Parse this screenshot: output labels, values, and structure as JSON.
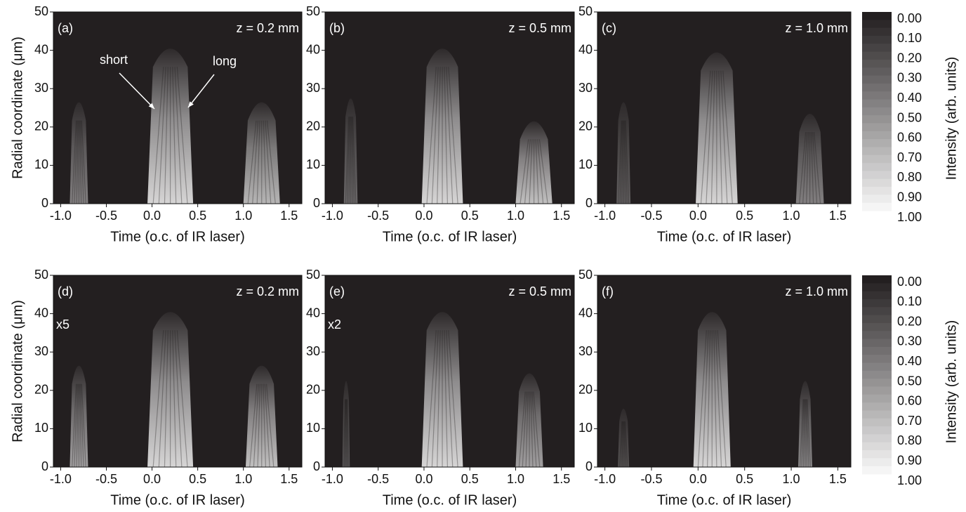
{
  "chart_data": [
    {
      "type": "contour",
      "panel": "(a)",
      "annotation": "z = 0.2 mm",
      "xlabel": "Time (o.c. of IR laser)",
      "ylabel": "Radial coordinate (μm)",
      "notes": [
        "short",
        "long"
      ],
      "xlim": [
        -1.08,
        1.64
      ],
      "ylim": [
        0,
        50
      ],
      "xticks": [
        {
          "value": -1,
          "label": "-1.0"
        },
        -0.5,
        {
          "value": 0,
          "label": "0.0"
        },
        0.5,
        {
          "value": 1,
          "label": "1.0"
        },
        1.5
      ],
      "yticks": [
        0,
        10,
        20,
        30,
        40,
        50
      ],
      "lobes": [
        {
          "x": -0.8,
          "width": 0.2,
          "top": 29,
          "intensity": 0.45
        },
        {
          "x": 0.2,
          "width": 0.5,
          "top": 43,
          "intensity": 0.85
        },
        {
          "x": 1.2,
          "width": 0.4,
          "top": 29,
          "intensity": 0.7
        }
      ]
    },
    {
      "type": "contour",
      "panel": "(b)",
      "annotation": "z = 0.5 mm",
      "xlabel": "Time (o.c. of IR laser)",
      "xlim": [
        -1.08,
        1.64
      ],
      "ylim": [
        0,
        50
      ],
      "xticks": [
        {
          "value": -1,
          "label": "-1.0"
        },
        -0.5,
        {
          "value": 0,
          "label": "0.0"
        },
        0.5,
        {
          "value": 1,
          "label": "1.0"
        },
        1.5
      ],
      "yticks": [
        0,
        10,
        20,
        30,
        40,
        50
      ],
      "lobes": [
        {
          "x": -0.8,
          "width": 0.15,
          "top": 30,
          "intensity": 0.35
        },
        {
          "x": 0.2,
          "width": 0.45,
          "top": 43,
          "intensity": 0.85
        },
        {
          "x": 1.2,
          "width": 0.4,
          "top": 24,
          "intensity": 0.75
        }
      ]
    },
    {
      "type": "contour",
      "panel": "(c)",
      "annotation": "z = 1.0 mm",
      "xlabel": "Time (o.c. of IR laser)",
      "xlim": [
        -1.08,
        1.64
      ],
      "ylim": [
        0,
        50
      ],
      "xticks": [
        {
          "value": -1,
          "label": "-1.0"
        },
        -0.5,
        {
          "value": 0,
          "label": "0.0"
        },
        0.5,
        {
          "value": 1,
          "label": "1.0"
        },
        1.5
      ],
      "yticks": [
        0,
        10,
        20,
        30,
        40,
        50
      ],
      "lobes": [
        {
          "x": -0.8,
          "width": 0.15,
          "top": 29,
          "intensity": 0.3
        },
        {
          "x": 0.2,
          "width": 0.45,
          "top": 42,
          "intensity": 0.85
        },
        {
          "x": 1.2,
          "width": 0.3,
          "top": 26,
          "intensity": 0.45
        }
      ]
    },
    {
      "type": "contour",
      "panel": "(d)",
      "annotation": "z = 0.2 mm",
      "xlabel": "Time (o.c. of IR laser)",
      "ylabel": "Radial coordinate (μm)",
      "notes": [
        "x5"
      ],
      "xlim": [
        -1.08,
        1.64
      ],
      "ylim": [
        0,
        50
      ],
      "xticks": [
        {
          "value": -1,
          "label": "-1.0"
        },
        -0.5,
        {
          "value": 0,
          "label": "0.0"
        },
        0.5,
        {
          "value": 1,
          "label": "1.0"
        },
        1.5
      ],
      "yticks": [
        0,
        10,
        20,
        30,
        40,
        50
      ],
      "lobes": [
        {
          "x": -0.8,
          "width": 0.2,
          "top": 29,
          "intensity": 0.6
        },
        {
          "x": 0.2,
          "width": 0.5,
          "top": 43,
          "intensity": 0.85
        },
        {
          "x": 1.2,
          "width": 0.35,
          "top": 29,
          "intensity": 0.75
        }
      ]
    },
    {
      "type": "contour",
      "panel": "(e)",
      "annotation": "z = 0.5 mm",
      "xlabel": "Time (o.c. of IR laser)",
      "notes": [
        "x2"
      ],
      "xlim": [
        -1.08,
        1.64
      ],
      "ylim": [
        0,
        50
      ],
      "xticks": [
        {
          "value": -1,
          "label": "-1.0"
        },
        -0.5,
        {
          "value": 0,
          "label": "0.0"
        },
        0.5,
        {
          "value": 1,
          "label": "1.0"
        },
        1.5
      ],
      "yticks": [
        0,
        10,
        20,
        30,
        40,
        50
      ],
      "lobes": [
        {
          "x": -0.85,
          "width": 0.08,
          "top": 25,
          "intensity": 0.3
        },
        {
          "x": 0.2,
          "width": 0.45,
          "top": 43,
          "intensity": 0.85
        },
        {
          "x": 1.15,
          "width": 0.3,
          "top": 27,
          "intensity": 0.6
        }
      ]
    },
    {
      "type": "contour",
      "panel": "(f)",
      "annotation": "z = 1.0 mm",
      "xlabel": "Time (o.c. of IR laser)",
      "xlim": [
        -1.08,
        1.64
      ],
      "ylim": [
        0,
        50
      ],
      "xticks": [
        {
          "value": -1,
          "label": "-1.0"
        },
        -0.5,
        {
          "value": 0,
          "label": "0.0"
        },
        0.5,
        {
          "value": 1,
          "label": "1.0"
        },
        1.5
      ],
      "yticks": [
        0,
        10,
        20,
        30,
        40,
        50
      ],
      "lobes": [
        {
          "x": -0.8,
          "width": 0.12,
          "top": 17,
          "intensity": 0.25
        },
        {
          "x": 0.15,
          "width": 0.4,
          "top": 43,
          "intensity": 0.85
        },
        {
          "x": 1.15,
          "width": 0.15,
          "top": 25,
          "intensity": 0.5
        }
      ]
    },
    {
      "type": "colorbar",
      "label": "Intensity (arb. units)",
      "lim": [
        0,
        1
      ],
      "ticks": [
        {
          "value": 0,
          "label": "0.00"
        },
        {
          "value": 0.1,
          "label": "0.10"
        },
        {
          "value": 0.2,
          "label": "0.20"
        },
        {
          "value": 0.3,
          "label": "0.30"
        },
        {
          "value": 0.4,
          "label": "0.40"
        },
        {
          "value": 0.5,
          "label": "0.50"
        },
        {
          "value": 0.6,
          "label": "0.60"
        },
        {
          "value": 0.7,
          "label": "0.70"
        },
        {
          "value": 0.8,
          "label": "0.80"
        },
        {
          "value": 0.9,
          "label": "0.90"
        },
        {
          "value": 1,
          "label": "1.00"
        }
      ]
    },
    {
      "type": "colorbar",
      "label": "Intensity (arb. units)",
      "lim": [
        0,
        1
      ],
      "ticks": [
        {
          "value": 0,
          "label": "0.00"
        },
        {
          "value": 0.1,
          "label": "0.10"
        },
        {
          "value": 0.2,
          "label": "0.20"
        },
        {
          "value": 0.3,
          "label": "0.30"
        },
        {
          "value": 0.4,
          "label": "0.40"
        },
        {
          "value": 0.5,
          "label": "0.50"
        },
        {
          "value": 0.6,
          "label": "0.60"
        },
        {
          "value": 0.7,
          "label": "0.70"
        },
        {
          "value": 0.8,
          "label": "0.80"
        },
        {
          "value": 0.9,
          "label": "0.90"
        },
        {
          "value": 1,
          "label": "1.00"
        }
      ]
    }
  ]
}
